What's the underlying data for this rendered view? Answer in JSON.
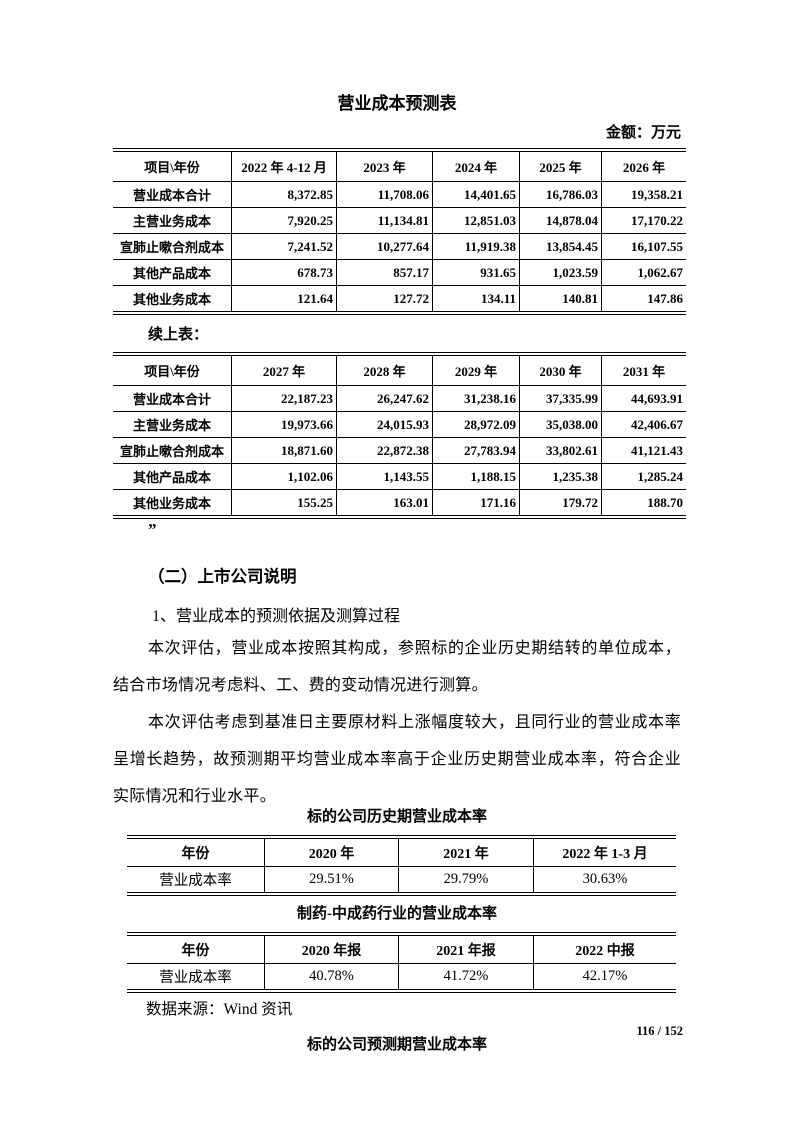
{
  "document": {
    "table1_title": "营业成本预测表",
    "unit_note": "金额：万元",
    "continued_note": "续上表：",
    "closing_quote": "”",
    "section_heading": "（二）上市公司说明",
    "item_heading": "1、营业成本的预测依据及测算过程",
    "paragraph1": "本次评估，营业成本按照其构成，参照标的企业历史期结转的单位成本，结合市场情况考虑料、工、费的变动情况进行测算。",
    "paragraph2": "本次评估考虑到基准日主要原材料上涨幅度较大，且同行业的营业成本率呈增长趋势，故预测期平均营业成本率高于企业历史期营业成本率，符合企业实际情况和行业水平。",
    "history_table_title": "标的公司历史期营业成本率",
    "industry_table_title": "制药-中成药行业的营业成本率",
    "data_source": "数据来源：Wind 资讯",
    "forecast_rate_table_title": "标的公司预测期营业成本率",
    "page_number": "116 / 152"
  },
  "forecast_table_part1": {
    "headers": [
      "项目\\年份",
      "2022 年 4-12 月",
      "2023 年",
      "2024 年",
      "2025 年",
      "2026 年"
    ],
    "rows": [
      [
        "营业成本合计",
        "8,372.85",
        "11,708.06",
        "14,401.65",
        "16,786.03",
        "19,358.21"
      ],
      [
        "主营业务成本",
        "7,920.25",
        "11,134.81",
        "12,851.03",
        "14,878.04",
        "17,170.22"
      ],
      [
        "宣肺止嗽合剂成本",
        "7,241.52",
        "10,277.64",
        "11,919.38",
        "13,854.45",
        "16,107.55"
      ],
      [
        "其他产品成本",
        "678.73",
        "857.17",
        "931.65",
        "1,023.59",
        "1,062.67"
      ],
      [
        "其他业务成本",
        "121.64",
        "127.72",
        "134.11",
        "140.81",
        "147.86"
      ]
    ]
  },
  "forecast_table_part2": {
    "headers": [
      "项目\\年份",
      "2027 年",
      "2028 年",
      "2029 年",
      "2030 年",
      "2031 年"
    ],
    "rows": [
      [
        "营业成本合计",
        "22,187.23",
        "26,247.62",
        "31,238.16",
        "37,335.99",
        "44,693.91"
      ],
      [
        "主营业务成本",
        "19,973.66",
        "24,015.93",
        "28,972.09",
        "35,038.00",
        "42,406.67"
      ],
      [
        "宣肺止嗽合剂成本",
        "18,871.60",
        "22,872.38",
        "27,783.94",
        "33,802.61",
        "41,121.43"
      ],
      [
        "其他产品成本",
        "1,102.06",
        "1,143.55",
        "1,188.15",
        "1,235.38",
        "1,285.24"
      ],
      [
        "其他业务成本",
        "155.25",
        "163.01",
        "171.16",
        "179.72",
        "188.70"
      ]
    ]
  },
  "history_rate_table": {
    "headers": [
      "年份",
      "2020 年",
      "2021 年",
      "2022 年 1-3 月"
    ],
    "rows": [
      [
        "营业成本率",
        "29.51%",
        "29.79%",
        "30.63%"
      ]
    ]
  },
  "industry_rate_table": {
    "headers": [
      "年份",
      "2020 年报",
      "2021 年报",
      "2022 中报"
    ],
    "rows": [
      [
        "营业成本率",
        "40.78%",
        "41.72%",
        "42.17%"
      ]
    ]
  }
}
